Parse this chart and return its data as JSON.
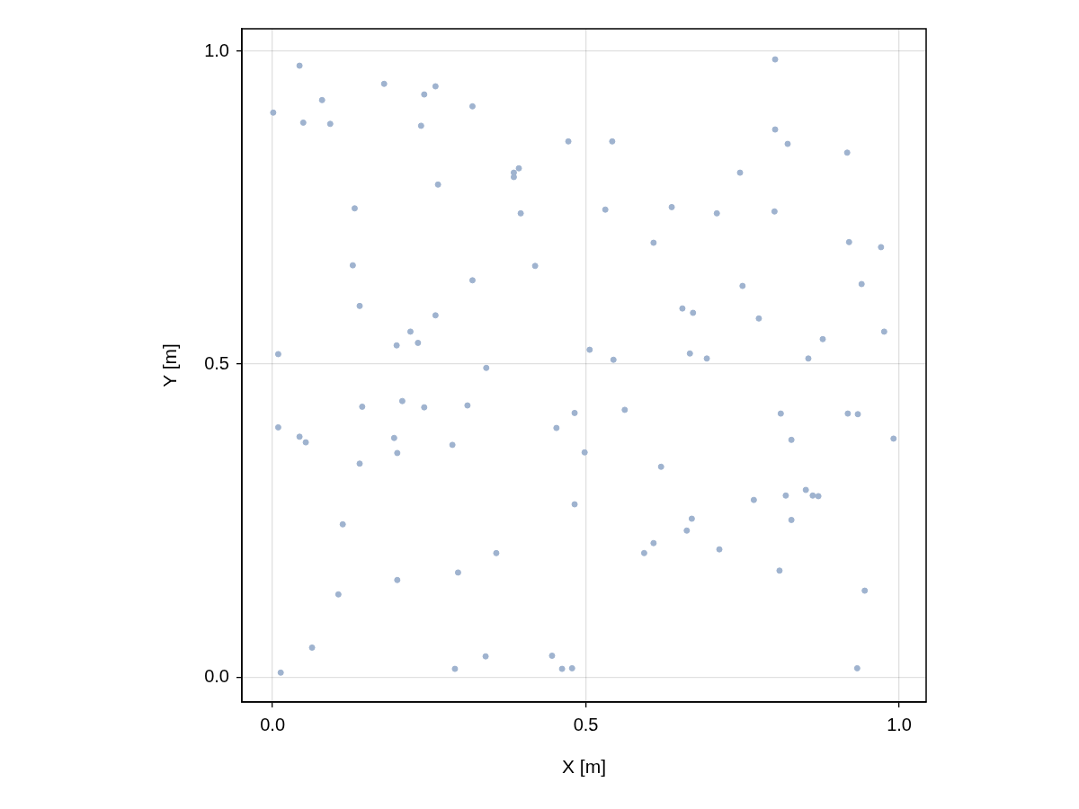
{
  "chart_data": {
    "type": "scatter",
    "xlabel": "X [m]",
    "ylabel": "Y [m]",
    "xlim": [
      -0.049,
      1.043
    ],
    "ylim": [
      -0.04,
      1.036
    ],
    "xticks": [
      {
        "value": 0,
        "label": "0.0"
      },
      {
        "value": 0.5,
        "label": "0.5"
      },
      {
        "value": 1,
        "label": "1.0"
      }
    ],
    "yticks": [
      {
        "value": 0,
        "label": "0.0"
      },
      {
        "value": 0.5,
        "label": "0.5"
      },
      {
        "value": 1,
        "label": "1.0"
      }
    ],
    "grid": true,
    "legend": false,
    "marker": "circle",
    "series": [
      {
        "color": "#9fb3cf",
        "x": [
          0.001,
          0.043,
          0.049,
          0.079,
          0.092,
          0.178,
          0.242,
          0.26,
          0.237,
          0.319,
          0.264,
          0.131,
          0.128,
          0.139,
          0.009,
          0.009,
          0.043,
          0.053,
          0.139,
          0.143,
          0.112,
          0.105,
          0.063,
          0.013,
          0.198,
          0.22,
          0.232,
          0.26,
          0.319,
          0.207,
          0.242,
          0.194,
          0.199,
          0.287,
          0.311,
          0.341,
          0.199,
          0.296,
          0.357,
          0.291,
          0.34,
          0.385,
          0.385,
          0.393,
          0.396,
          0.419,
          0.472,
          0.542,
          0.531,
          0.506,
          0.544,
          0.482,
          0.453,
          0.498,
          0.562,
          0.482,
          0.446,
          0.462,
          0.478,
          0.637,
          0.608,
          0.709,
          0.746,
          0.801,
          0.75,
          0.654,
          0.671,
          0.776,
          0.666,
          0.693,
          0.62,
          0.768,
          0.669,
          0.661,
          0.608,
          0.593,
          0.713,
          0.819,
          0.828,
          0.828,
          0.809,
          0.802,
          0.802,
          0.822,
          0.917,
          0.811,
          0.878,
          0.855,
          0.92,
          0.971,
          0.94,
          0.976,
          0.918,
          0.934,
          0.991,
          0.871,
          0.851,
          0.862,
          0.945,
          0.933
        ],
        "values": [
          0.902,
          0.977,
          0.886,
          0.922,
          0.884,
          0.948,
          0.931,
          0.944,
          0.881,
          0.912,
          0.787,
          0.749,
          0.658,
          0.593,
          0.516,
          0.399,
          0.384,
          0.375,
          0.341,
          0.432,
          0.244,
          0.132,
          0.047,
          0.007,
          0.53,
          0.552,
          0.534,
          0.578,
          0.634,
          0.441,
          0.431,
          0.382,
          0.358,
          0.371,
          0.434,
          0.494,
          0.155,
          0.167,
          0.198,
          0.013,
          0.033,
          0.799,
          0.806,
          0.813,
          0.741,
          0.657,
          0.856,
          0.856,
          0.747,
          0.523,
          0.507,
          0.422,
          0.398,
          0.359,
          0.427,
          0.276,
          0.034,
          0.013,
          0.014,
          0.751,
          0.694,
          0.741,
          0.806,
          0.744,
          0.625,
          0.589,
          0.582,
          0.573,
          0.517,
          0.509,
          0.336,
          0.283,
          0.253,
          0.234,
          0.214,
          0.198,
          0.204,
          0.29,
          0.379,
          0.251,
          0.17,
          0.987,
          0.875,
          0.852,
          0.838,
          0.421,
          0.54,
          0.509,
          0.695,
          0.687,
          0.628,
          0.552,
          0.421,
          0.42,
          0.381,
          0.289,
          0.299,
          0.29,
          0.138,
          0.014
        ]
      }
    ]
  }
}
